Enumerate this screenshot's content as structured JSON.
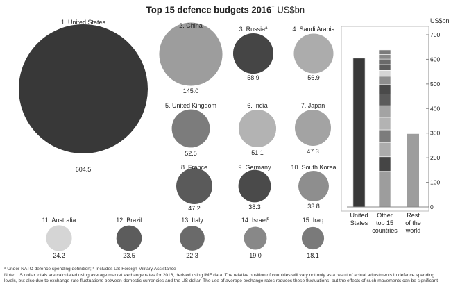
{
  "title": {
    "main": "Top 15 defence budgets 2016",
    "dagger": "†",
    "unit": "US$bn"
  },
  "chart_data": [
    {
      "type": "bubble",
      "unit": "US$bn",
      "countries": [
        {
          "rank_label": "1. United States",
          "value": 604.5,
          "value_label": "604.5",
          "color": "#383838"
        },
        {
          "rank_label": "2. China",
          "value": 145.0,
          "value_label": "145.0",
          "color": "#9d9d9d"
        },
        {
          "rank_label": "3. Russia",
          "marker": "a",
          "value": 58.9,
          "value_label": "58.9",
          "color": "#454545"
        },
        {
          "rank_label": "4. Saudi Arabia",
          "value": 56.9,
          "value_label": "56.9",
          "color": "#acacac"
        },
        {
          "rank_label": "5. United Kingdom",
          "value": 52.5,
          "value_label": "52.5",
          "color": "#7c7c7c"
        },
        {
          "rank_label": "6. India",
          "value": 51.1,
          "value_label": "51.1",
          "color": "#b3b3b3"
        },
        {
          "rank_label": "7. Japan",
          "value": 47.3,
          "value_label": "47.3",
          "color": "#a3a3a3"
        },
        {
          "rank_label": "8. France",
          "value": 47.2,
          "value_label": "47.2",
          "color": "#5a5a5a"
        },
        {
          "rank_label": "9. Germany",
          "value": 38.3,
          "value_label": "38.3",
          "color": "#4a4a4a"
        },
        {
          "rank_label": "10. South Korea",
          "value": 33.8,
          "value_label": "33.8",
          "color": "#8e8e8e"
        },
        {
          "rank_label": "11. Australia",
          "value": 24.2,
          "value_label": "24.2",
          "color": "#d5d5d5"
        },
        {
          "rank_label": "12. Brazil",
          "value": 23.5,
          "value_label": "23.5",
          "color": "#5c5c5c"
        },
        {
          "rank_label": "13. Italy",
          "value": 22.3,
          "value_label": "22.3",
          "color": "#6a6a6a"
        },
        {
          "rank_label": "14. Israel",
          "marker": "b",
          "value": 19.0,
          "value_label": "19.0",
          "color": "#888888"
        },
        {
          "rank_label": "15. Iraq",
          "value": 18.1,
          "value_label": "18.1",
          "color": "#7a7a7a"
        }
      ]
    },
    {
      "type": "bar",
      "stacked": true,
      "ylabel": "US$bn",
      "ylim": [
        0,
        700
      ],
      "yticks": [
        "0",
        "100",
        "200",
        "300",
        "400",
        "500",
        "600",
        "700"
      ],
      "categories": [
        {
          "label_lines": [
            "United",
            "States"
          ],
          "value": 604.5,
          "color": "#383838"
        },
        {
          "label_lines": [
            "Other",
            "top 15",
            "countries"
          ],
          "value": 638.6,
          "stacked_from": [
            145.0,
            58.9,
            56.9,
            52.5,
            51.1,
            47.3,
            47.2,
            38.3,
            33.8,
            24.2,
            23.5,
            22.3,
            19.0,
            18.1
          ]
        },
        {
          "label_lines": [
            "Rest",
            "of the",
            "world"
          ],
          "value": 297,
          "color": "#9d9d9d"
        }
      ]
    }
  ],
  "footnotes": {
    "line1": "ᵃ Under NATO defence spending definition; ᵇ Includes US Foreign Military Assistance",
    "line2": "Note: US dollar totals are calculated using average market exchange rates for 2016, derived using IMF data. The relative position of countries will vary not only as a result of actual adjustments in defence spending levels, but also due to exchange-rate fluctuations between domestic currencies and the US dollar. The use of average exchange rates reduces these fluctuations, but the effects of such movements can be significant"
  }
}
